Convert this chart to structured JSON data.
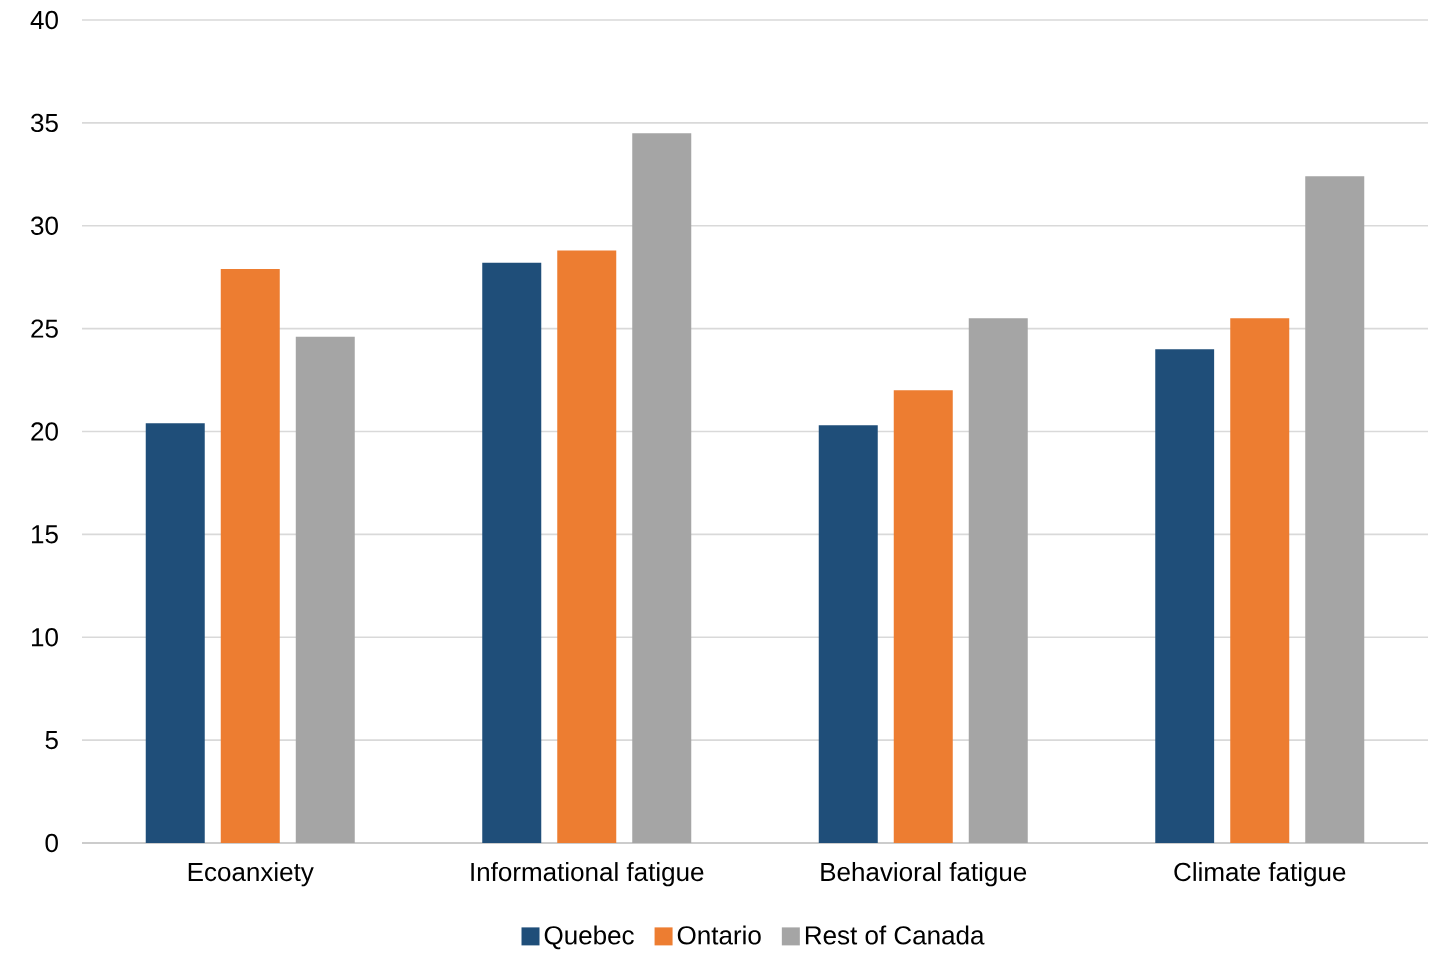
{
  "chart_data": {
    "type": "bar",
    "categories": [
      "Ecoanxiety",
      "Informational fatigue",
      "Behavioral fatigue",
      "Climate fatigue"
    ],
    "series": [
      {
        "name": "Quebec",
        "color": "#1f4e79",
        "values": [
          20.4,
          28.2,
          20.3,
          24.0
        ]
      },
      {
        "name": "Ontario",
        "color": "#ed7d31",
        "values": [
          27.9,
          28.8,
          22.0,
          25.5
        ]
      },
      {
        "name": "Rest of Canada",
        "color": "#a5a5a5",
        "values": [
          24.6,
          34.5,
          25.5,
          32.4
        ]
      }
    ],
    "ylim": [
      0,
      40
    ],
    "yticks": [
      0,
      5,
      10,
      15,
      20,
      25,
      30,
      35,
      40
    ],
    "grid": "y",
    "legend": "bottom"
  }
}
